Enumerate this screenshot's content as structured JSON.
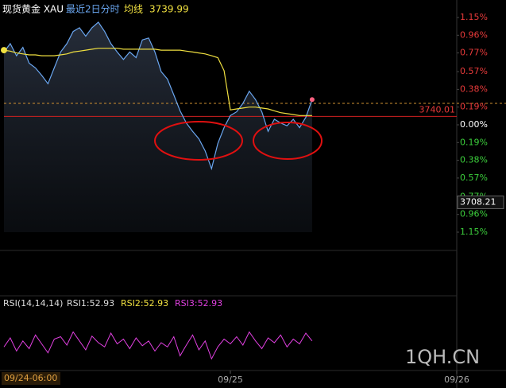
{
  "chart_data": {
    "type": "line",
    "title": "现货黄金 XAU",
    "categories": [
      "09/24-06:00",
      null,
      null,
      null,
      null,
      null,
      null,
      null,
      null,
      null,
      null,
      null,
      null,
      null,
      null,
      null,
      null,
      null,
      null,
      null,
      null,
      null,
      null,
      null,
      null,
      null,
      null,
      null,
      null,
      null,
      null,
      null,
      null,
      null,
      null,
      null,
      "09/25",
      null,
      null,
      null,
      null,
      null,
      null,
      null,
      null,
      null,
      null,
      null,
      null,
      null,
      null,
      null,
      null,
      null,
      null,
      null,
      null,
      null,
      null,
      null,
      null,
      null,
      null,
      null,
      null,
      null,
      null,
      null,
      null,
      null,
      null,
      null,
      "09/26"
    ],
    "series": [
      {
        "name": "最近2日分时",
        "color": "#6aa6f0",
        "values": [
          0.78,
          0.87,
          0.74,
          0.83,
          0.66,
          0.61,
          0.53,
          0.44,
          0.61,
          0.78,
          0.87,
          1.0,
          1.04,
          0.95,
          1.04,
          1.1,
          1.0,
          0.87,
          0.78,
          0.7,
          0.78,
          0.72,
          0.91,
          0.93,
          0.78,
          0.57,
          0.49,
          0.32,
          0.15,
          0.02,
          -0.07,
          -0.15,
          -0.28,
          -0.47,
          -0.2,
          -0.03,
          0.1,
          0.14,
          0.23,
          0.36,
          0.27,
          0.14,
          -0.07,
          0.06,
          0.02,
          -0.01,
          0.06,
          -0.03,
          0.08,
          0.27,
          null,
          null,
          null,
          null,
          null,
          null,
          null,
          null,
          null,
          null,
          null,
          null,
          null,
          null,
          null,
          null,
          null,
          null,
          null,
          null,
          null,
          null,
          null
        ]
      },
      {
        "name": "均线",
        "color": "#f0e040",
        "latest": 3739.99,
        "values": [
          0.8,
          0.79,
          0.77,
          0.76,
          0.75,
          0.75,
          0.74,
          0.74,
          0.74,
          0.75,
          0.76,
          0.78,
          0.79,
          0.8,
          0.81,
          0.82,
          0.82,
          0.82,
          0.82,
          0.81,
          0.81,
          0.81,
          0.81,
          0.81,
          0.81,
          0.8,
          0.8,
          0.8,
          0.8,
          0.79,
          0.78,
          0.77,
          0.76,
          0.74,
          0.72,
          0.58,
          0.16,
          0.17,
          0.18,
          0.19,
          0.19,
          0.18,
          0.17,
          0.15,
          0.13,
          0.12,
          0.11,
          0.1,
          0.1,
          0.1,
          null,
          null,
          null,
          null,
          null,
          null,
          null,
          null,
          null,
          null,
          null,
          null,
          null,
          null,
          null,
          null,
          null,
          null,
          null,
          null,
          null,
          null,
          null
        ]
      }
    ],
    "ylim": [
      -1.15,
      1.15
    ],
    "yticks": [
      {
        "value": 1.15,
        "label": "1.15%"
      },
      {
        "value": 0.96,
        "label": "0.96%"
      },
      {
        "value": 0.77,
        "label": "0.77%"
      },
      {
        "value": 0.57,
        "label": "0.57%"
      },
      {
        "value": 0.38,
        "label": "0.38%"
      },
      {
        "value": 0.19,
        "label": "0.19%"
      },
      {
        "value": 0,
        "label": "0.00%"
      },
      {
        "value": -0.19,
        "label": "0.19%"
      },
      {
        "value": -0.38,
        "label": "0.38%"
      },
      {
        "value": -0.57,
        "label": "0.57%"
      },
      {
        "value": -0.77,
        "label": "0.77%"
      },
      {
        "value": -0.96,
        "label": "0.96%"
      },
      {
        "value": -1.15,
        "label": "1.15%"
      }
    ],
    "up_color": "#e83a3a",
    "down_color": "#3ccf3c",
    "current_line": 0.23,
    "price_lines": [
      {
        "value": 0.09,
        "label": "3740.01"
      },
      {
        "value": -0.83,
        "label": "3708.21"
      }
    ],
    "rsi": {
      "title": "RSI(14,14,14)",
      "labels": [
        "RSI1:52.93",
        "RSI2:52.93",
        "RSI3:52.93"
      ],
      "ylim": [
        0,
        100
      ],
      "color": "#e040e0",
      "values": [
        45,
        60,
        38,
        55,
        42,
        65,
        50,
        35,
        58,
        62,
        48,
        70,
        55,
        40,
        63,
        52,
        45,
        68,
        50,
        58,
        42,
        60,
        47,
        55,
        38,
        52,
        45,
        62,
        30,
        48,
        65,
        40,
        55,
        25,
        45,
        58,
        50,
        62,
        48,
        70,
        55,
        42,
        60,
        52,
        65,
        45,
        58,
        50,
        68,
        55,
        null,
        null,
        null,
        null,
        null,
        null,
        null,
        null,
        null,
        null,
        null,
        null,
        null,
        null,
        null,
        null,
        null,
        null,
        null,
        null,
        null,
        null,
        null
      ]
    },
    "watermark": "1QH.CN"
  }
}
